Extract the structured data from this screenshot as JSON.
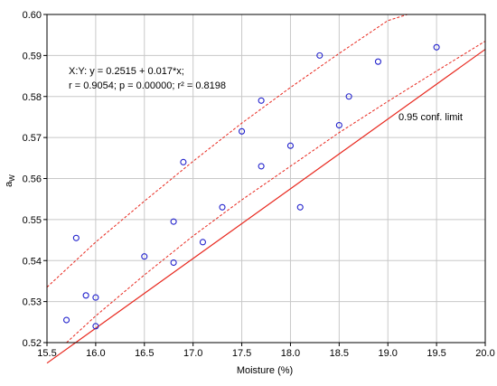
{
  "chart_data": {
    "type": "scatter",
    "title": "",
    "xlabel": "Moisture (%)",
    "ylabel": "a",
    "ylabel_subscript": "W",
    "xlim": [
      15.5,
      20.0
    ],
    "ylim": [
      0.52,
      0.6
    ],
    "x_ticks": [
      "15.5",
      "16.0",
      "16.5",
      "17.0",
      "17.5",
      "18.0",
      "18.5",
      "19.0",
      "19.5",
      "20.0"
    ],
    "y_ticks": [
      "0.52",
      "0.53",
      "0.54",
      "0.55",
      "0.56",
      "0.57",
      "0.58",
      "0.59",
      "0.60"
    ],
    "grid": true,
    "points": [
      {
        "x": 15.7,
        "y": 0.5255
      },
      {
        "x": 15.8,
        "y": 0.5455
      },
      {
        "x": 15.9,
        "y": 0.5315
      },
      {
        "x": 16.0,
        "y": 0.531
      },
      {
        "x": 16.0,
        "y": 0.524
      },
      {
        "x": 16.5,
        "y": 0.541
      },
      {
        "x": 16.8,
        "y": 0.5495
      },
      {
        "x": 16.8,
        "y": 0.5395
      },
      {
        "x": 16.9,
        "y": 0.564
      },
      {
        "x": 17.1,
        "y": 0.5445
      },
      {
        "x": 17.3,
        "y": 0.553
      },
      {
        "x": 17.5,
        "y": 0.5715
      },
      {
        "x": 17.7,
        "y": 0.579
      },
      {
        "x": 17.7,
        "y": 0.563
      },
      {
        "x": 18.0,
        "y": 0.568
      },
      {
        "x": 18.1,
        "y": 0.553
      },
      {
        "x": 18.3,
        "y": 0.59
      },
      {
        "x": 18.5,
        "y": 0.573
      },
      {
        "x": 18.6,
        "y": 0.58
      },
      {
        "x": 18.9,
        "y": 0.5885
      },
      {
        "x": 19.5,
        "y": 0.592
      }
    ],
    "regression": {
      "intercept": 0.2515,
      "slope": 0.017
    },
    "confidence_band": {
      "upper": [
        {
          "x": 15.5,
          "y": 0.5335
        },
        {
          "x": 16.0,
          "y": 0.5445
        },
        {
          "x": 16.5,
          "y": 0.5545
        },
        {
          "x": 17.0,
          "y": 0.5642
        },
        {
          "x": 17.5,
          "y": 0.5735
        },
        {
          "x": 18.0,
          "y": 0.5822
        },
        {
          "x": 18.5,
          "y": 0.5905
        },
        {
          "x": 19.0,
          "y": 0.5985
        },
        {
          "x": 19.2,
          "y": 0.6
        }
      ],
      "lower": [
        {
          "x": 15.7,
          "y": 0.52
        },
        {
          "x": 16.0,
          "y": 0.5265
        },
        {
          "x": 16.5,
          "y": 0.5365
        },
        {
          "x": 17.0,
          "y": 0.546
        },
        {
          "x": 17.5,
          "y": 0.5548
        },
        {
          "x": 18.0,
          "y": 0.563
        },
        {
          "x": 18.5,
          "y": 0.5712
        },
        {
          "x": 19.0,
          "y": 0.5788
        },
        {
          "x": 19.5,
          "y": 0.5862
        },
        {
          "x": 20.0,
          "y": 0.5935
        }
      ]
    },
    "annotations": {
      "equation_line1": "X:Y: y = 0.2515 + 0.017*x;",
      "equation_line2": "r = 0.9054; p = 0.00000; r² = 0.8198",
      "conf_label": "0.95 conf. limit"
    },
    "colors": {
      "line": "#e8281e",
      "marker": "#2222cc",
      "grid": "#c8c8c8",
      "axis": "#000000"
    }
  }
}
